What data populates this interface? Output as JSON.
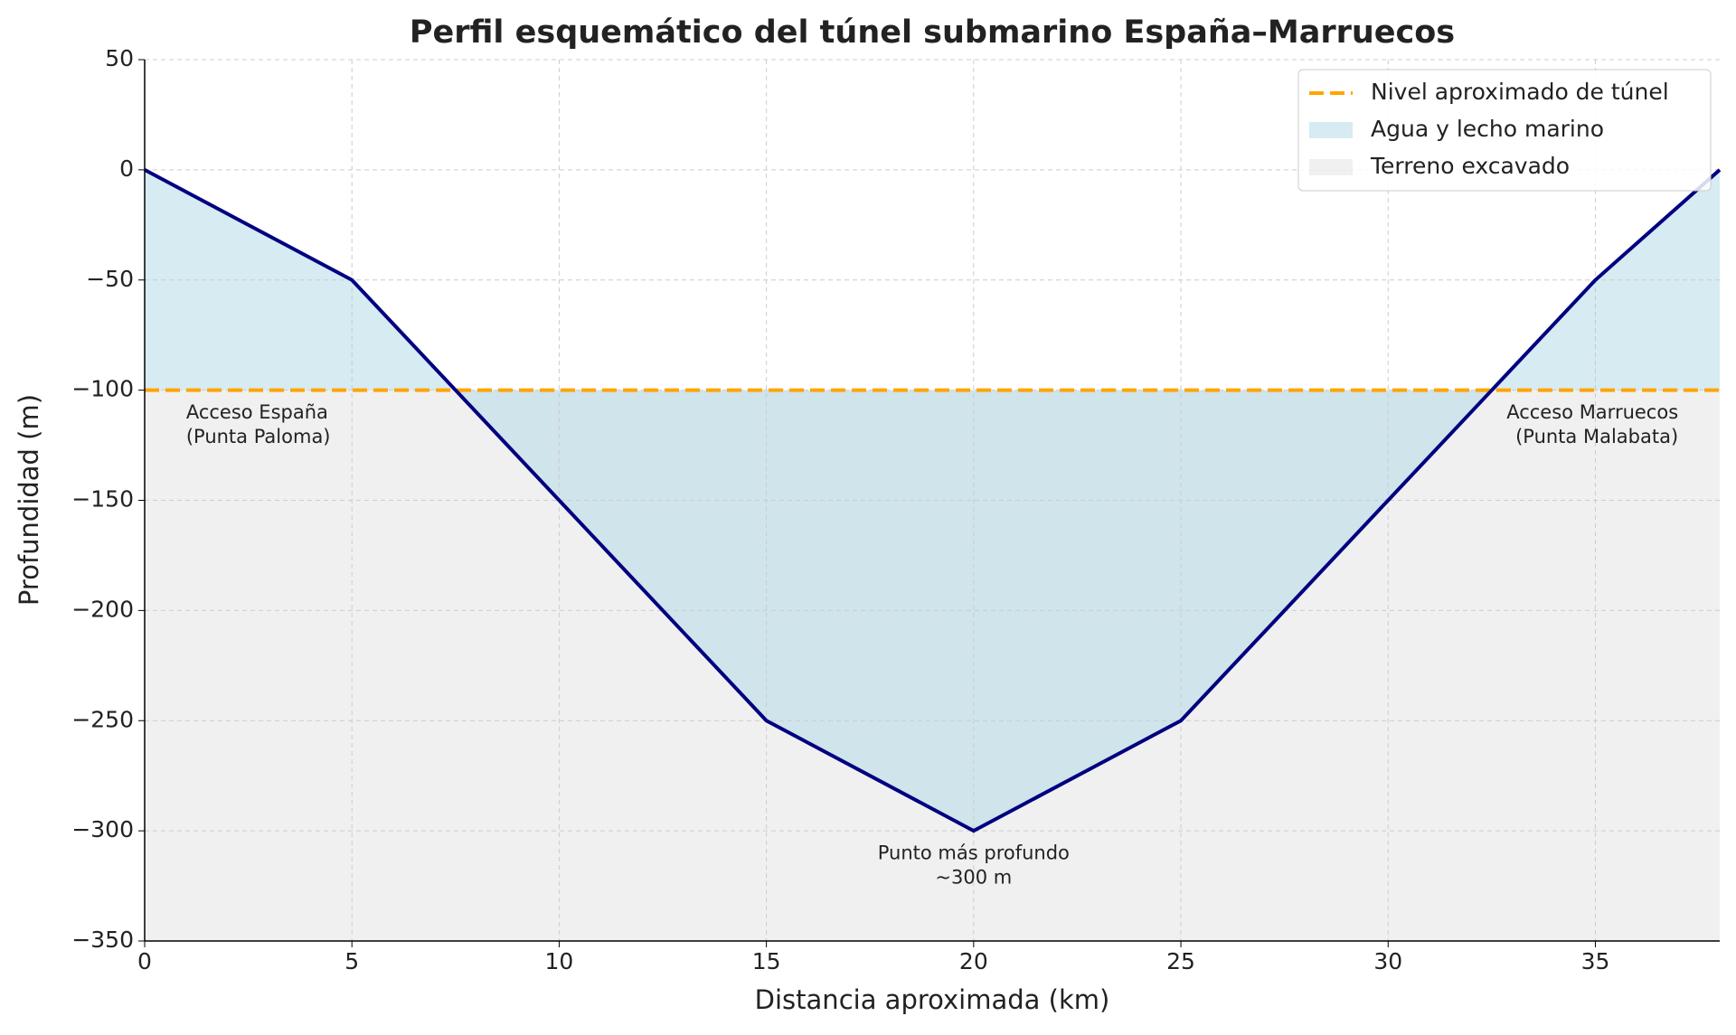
{
  "chart_data": {
    "type": "area-profile",
    "title": "Perfil esquemático del túnel submarino España–Marruecos",
    "x_label": "Distancia aproximada (km)",
    "y_label": "Profundidad (m)",
    "x": [
      0,
      5,
      10,
      15,
      20,
      25,
      30,
      35,
      38
    ],
    "seabed": {
      "color": "#000080",
      "values": [
        0,
        -50,
        -150,
        -250,
        -300,
        -250,
        -150,
        -50,
        0
      ]
    },
    "tunnel_level": {
      "name": "Nivel aproximado de túnel",
      "color": "#ffa500",
      "value": -100
    },
    "water": {
      "name": "Agua y lecho marino",
      "color": "#add8e6"
    },
    "terrain": {
      "name": "Terreno excavado",
      "color": "#d3d3d3"
    },
    "xlim": [
      0,
      38
    ],
    "ylim": [
      -350,
      50
    ],
    "xticks": [
      0,
      5,
      10,
      15,
      20,
      25,
      30,
      35
    ],
    "yticks": [
      50,
      0,
      {
        "value": -50,
        "label": "−50"
      },
      {
        "value": -100,
        "label": "−100"
      },
      {
        "value": -150,
        "label": "−150"
      },
      {
        "value": -200,
        "label": "−200"
      },
      {
        "value": -250,
        "label": "−250"
      },
      {
        "value": -300,
        "label": "−300"
      },
      {
        "value": -350,
        "label": "−350"
      }
    ],
    "grid": true,
    "legend": "upper right",
    "annotations": [
      {
        "lines": [
          "Acceso España",
          "(Punta Paloma)"
        ]
      },
      {
        "lines": [
          "Acceso Marruecos",
          "(Punta Malabata)"
        ]
      },
      {
        "lines": [
          "Punto más profundo",
          "~300 m"
        ]
      }
    ]
  }
}
